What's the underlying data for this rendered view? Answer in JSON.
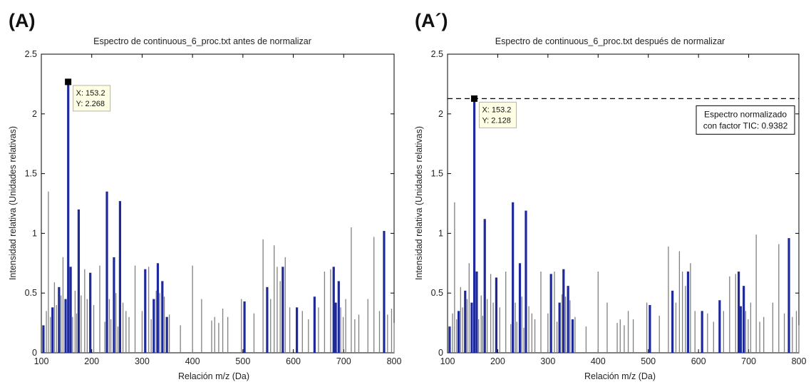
{
  "chart_data": [
    {
      "type": "bar",
      "panel_label": "(A)",
      "title": "Espectro de continuous_6_proc.txt antes de normalizar",
      "xlabel": "Relación m/z (Da)",
      "ylabel": "Intensidad relativa (Unidades relativas)",
      "xlim": [
        100,
        800
      ],
      "ylim": [
        0,
        2.5
      ],
      "xticks": [
        "100",
        "200",
        "300",
        "400",
        "500",
        "600",
        "700",
        "800"
      ],
      "yticks": [
        "0",
        "0.5",
        "1",
        "1.5",
        "2",
        "2.5"
      ],
      "grid": false,
      "line_color": "#808080",
      "fill_color": "#1f2a9a",
      "peaks": {
        "x": [
          104,
          110,
          114,
          118,
          122,
          126,
          130,
          135,
          139,
          143,
          148,
          153.2,
          158,
          162,
          167,
          170,
          174,
          179,
          186,
          191,
          197,
          204,
          216,
          226,
          230,
          235,
          238,
          244,
          248,
          252,
          256,
          262,
          268,
          274,
          286,
          300,
          306,
          313,
          318,
          323,
          328,
          331,
          335,
          340,
          344,
          349,
          354,
          376,
          400,
          418,
          438,
          444,
          452,
          460,
          470,
          497,
          503,
          522,
          540,
          548,
          555,
          562,
          568,
          574,
          579,
          584,
          593,
          607,
          618,
          630,
          642,
          650,
          662,
          674,
          680,
          684,
          690,
          694,
          699,
          704,
          715,
          722,
          730,
          748,
          760,
          771,
          780,
          787,
          795,
          800
        ],
        "y": [
          0.23,
          0.35,
          1.35,
          0.3,
          0.38,
          0.59,
          0.4,
          0.55,
          0.48,
          0.8,
          0.45,
          2.268,
          0.72,
          0.3,
          0.52,
          0.33,
          1.2,
          0.48,
          0.7,
          0.45,
          0.67,
          0.4,
          0.73,
          0.26,
          1.35,
          0.45,
          0.28,
          0.8,
          0.5,
          0.22,
          1.27,
          0.42,
          0.35,
          0.3,
          0.73,
          0.35,
          0.7,
          0.72,
          0.28,
          0.45,
          0.52,
          0.75,
          0.5,
          0.6,
          0.47,
          0.3,
          0.32,
          0.23,
          0.73,
          0.45,
          0.27,
          0.3,
          0.25,
          0.37,
          0.3,
          0.45,
          0.43,
          0.33,
          0.95,
          0.55,
          0.45,
          0.9,
          0.72,
          0.6,
          0.72,
          0.8,
          0.38,
          0.38,
          0.35,
          0.28,
          0.47,
          0.38,
          0.68,
          0.7,
          0.72,
          0.42,
          0.6,
          0.38,
          0.3,
          0.45,
          1.05,
          0.28,
          0.32,
          0.45,
          0.97,
          0.35,
          1.02,
          0.32,
          0.37,
          0.25
        ],
        "filled": [
          104,
          122,
          135,
          148,
          153.2,
          158,
          174,
          197,
          230,
          244,
          256,
          306,
          323,
          331,
          340,
          349,
          503,
          548,
          579,
          607,
          642,
          680,
          684,
          690,
          780
        ]
      },
      "datatip": {
        "x_label": "X: 153.2",
        "y_label": "Y: 2.268",
        "x": 153.2,
        "y": 2.268
      }
    },
    {
      "type": "bar",
      "panel_label": "(A´)",
      "title": "Espectro de continuous_6_proc.txt después de normalizar",
      "xlabel": "Relación m/z (Da)",
      "ylabel": "Intensidad relativa (Unidades relativas)",
      "xlim": [
        100,
        800
      ],
      "ylim": [
        0,
        2.5
      ],
      "xticks": [
        "100",
        "200",
        "300",
        "400",
        "500",
        "600",
        "700",
        "800"
      ],
      "yticks": [
        "0",
        "0.5",
        "1",
        "1.5",
        "2",
        "2.5"
      ],
      "grid": false,
      "line_color": "#808080",
      "fill_color": "#1f2a9a",
      "reference_line": {
        "y": 2.128,
        "style": "dashed"
      },
      "annotation": [
        "Espectro normalizado",
        "con factor TIC: 0.9382"
      ],
      "peaks": {
        "x": [
          104,
          110,
          114,
          118,
          122,
          126,
          130,
          135,
          139,
          143,
          148,
          153.2,
          158,
          162,
          167,
          170,
          174,
          179,
          186,
          191,
          197,
          204,
          216,
          226,
          230,
          235,
          238,
          244,
          248,
          252,
          256,
          262,
          268,
          274,
          286,
          300,
          306,
          313,
          318,
          323,
          328,
          331,
          335,
          340,
          344,
          349,
          354,
          376,
          400,
          418,
          438,
          444,
          452,
          460,
          470,
          497,
          503,
          522,
          540,
          548,
          555,
          562,
          568,
          574,
          579,
          584,
          593,
          607,
          618,
          630,
          642,
          650,
          662,
          674,
          680,
          684,
          690,
          694,
          699,
          704,
          715,
          722,
          730,
          748,
          760,
          771,
          780,
          787,
          795,
          800
        ],
        "y": [
          0.22,
          0.33,
          1.26,
          0.28,
          0.35,
          0.55,
          0.38,
          0.52,
          0.45,
          0.75,
          0.42,
          2.128,
          0.68,
          0.28,
          0.48,
          0.31,
          1.12,
          0.45,
          0.66,
          0.42,
          0.63,
          0.38,
          0.68,
          0.24,
          1.26,
          0.42,
          0.26,
          0.75,
          0.47,
          0.21,
          1.19,
          0.39,
          0.33,
          0.28,
          0.68,
          0.33,
          0.66,
          0.68,
          0.26,
          0.42,
          0.49,
          0.7,
          0.47,
          0.56,
          0.44,
          0.28,
          0.3,
          0.22,
          0.68,
          0.42,
          0.25,
          0.28,
          0.23,
          0.35,
          0.28,
          0.42,
          0.4,
          0.31,
          0.89,
          0.52,
          0.42,
          0.85,
          0.68,
          0.56,
          0.68,
          0.75,
          0.35,
          0.35,
          0.33,
          0.26,
          0.44,
          0.35,
          0.64,
          0.66,
          0.68,
          0.39,
          0.56,
          0.35,
          0.28,
          0.42,
          0.99,
          0.26,
          0.3,
          0.42,
          0.91,
          0.33,
          0.96,
          0.3,
          0.35,
          0.23
        ],
        "filled": [
          104,
          122,
          135,
          148,
          153.2,
          158,
          174,
          197,
          230,
          244,
          256,
          306,
          323,
          331,
          340,
          349,
          503,
          548,
          579,
          607,
          642,
          680,
          684,
          690,
          780
        ]
      },
      "datatip": {
        "x_label": "X: 153.2",
        "y_label": "Y: 2.128",
        "x": 153.2,
        "y": 2.128
      }
    }
  ]
}
